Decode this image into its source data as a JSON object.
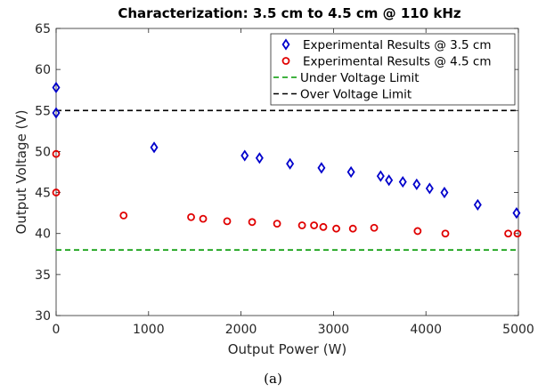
{
  "caption": "(a)",
  "chart_data": {
    "type": "scatter",
    "title": "Characterization: 3.5 cm to 4.5 cm @ 110 kHz",
    "xlabel": "Output Power (W)",
    "ylabel": "Output Voltage (V)",
    "xlim": [
      0,
      5000
    ],
    "ylim": [
      30,
      65
    ],
    "xticks": [
      0,
      1000,
      2000,
      3000,
      4000,
      5000
    ],
    "yticks": [
      30,
      35,
      40,
      45,
      50,
      55,
      60,
      65
    ],
    "grid": false,
    "legend_position": "top-right",
    "series": [
      {
        "name": "Experimental Results @ 3.5 cm",
        "marker": "diamond",
        "color": "#0000cc",
        "x": [
          0,
          0,
          1060,
          2040,
          2200,
          2530,
          2870,
          3190,
          3510,
          3600,
          3750,
          3900,
          4040,
          4200,
          4560,
          4980
        ],
        "y": [
          57.8,
          54.7,
          50.5,
          49.5,
          49.2,
          48.5,
          48.0,
          47.5,
          47.0,
          46.5,
          46.3,
          46.0,
          45.5,
          45.0,
          43.5,
          42.5
        ]
      },
      {
        "name": "Experimental Results @ 4.5 cm",
        "marker": "circle",
        "color": "#e00000",
        "x": [
          0,
          0,
          730,
          1460,
          1590,
          1850,
          2120,
          2390,
          2660,
          2790,
          2890,
          3030,
          3210,
          3440,
          3910,
          4210,
          4890,
          4990
        ],
        "y": [
          49.7,
          45.0,
          42.2,
          42.0,
          41.8,
          41.5,
          41.4,
          41.2,
          41.0,
          41.0,
          40.8,
          40.6,
          40.6,
          40.7,
          40.3,
          40.0,
          40.0,
          40.0
        ]
      }
    ],
    "reference_lines": [
      {
        "name": "Under Voltage Limit",
        "y": 38,
        "color": "#009900",
        "style": "dashed"
      },
      {
        "name": "Over Voltage Limit",
        "y": 55,
        "color": "#000000",
        "style": "dashed"
      }
    ]
  }
}
